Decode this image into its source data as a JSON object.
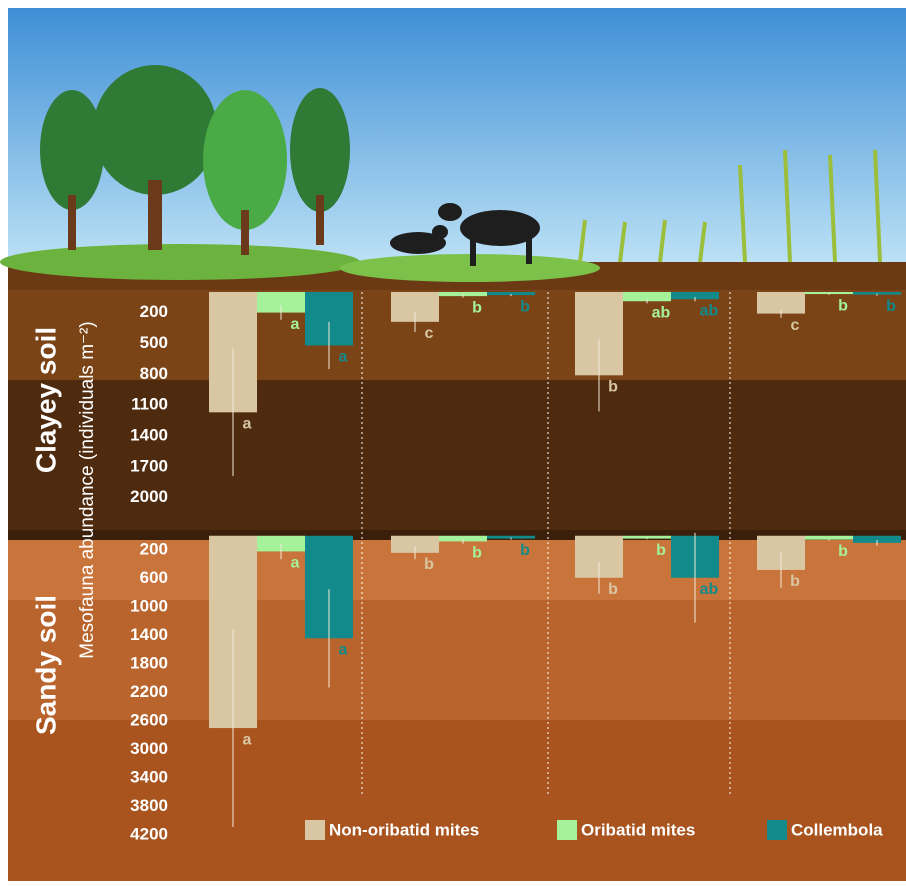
{
  "chart_data": [
    {
      "type": "bar",
      "panel_label": "Clayey soil",
      "ylabel": "Mesofauna abundance (individuals m⁻²)",
      "ylim": [
        0,
        2100
      ],
      "yticks": [
        200,
        500,
        800,
        1100,
        1400,
        1700,
        2000
      ],
      "inverted": true,
      "categories": [
        null,
        null,
        null,
        null
      ],
      "series": [
        {
          "color": "#d9c7a3",
          "values": [
            1170,
            290,
            810,
            210
          ],
          "errors": [
            620,
            100,
            350,
            40
          ],
          "value_labels": [
            "a",
            "c",
            "b",
            "c"
          ]
        },
        {
          "color": "#a6f29b",
          "values": [
            200,
            40,
            90,
            20
          ],
          "errors": [
            70,
            15,
            20,
            8
          ],
          "value_labels": [
            "a",
            "b",
            "ab",
            "b"
          ]
        },
        {
          "color": "#12898a",
          "values": [
            520,
            30,
            70,
            25
          ],
          "errors": [
            230,
            10,
            20,
            10
          ],
          "value_labels": [
            "a",
            "b",
            "ab",
            "b"
          ]
        }
      ]
    },
    {
      "type": "bar",
      "panel_label": "Sandy soil",
      "ylim": [
        0,
        4300
      ],
      "yticks": [
        200,
        600,
        1000,
        1400,
        1800,
        2200,
        2600,
        3000,
        3400,
        3800,
        4200
      ],
      "inverted": true,
      "categories": [
        null,
        null,
        null,
        null
      ],
      "series": [
        {
          "name": "Non-oribatid mites",
          "color": "#d9c7a3",
          "values": [
            2700,
            240,
            590,
            480
          ],
          "errors": [
            1390,
            90,
            220,
            250
          ],
          "value_labels": [
            "a",
            "b",
            "b",
            "b"
          ]
        },
        {
          "name": "Oribatid mites",
          "color": "#a6f29b",
          "values": [
            220,
            80,
            40,
            55
          ],
          "errors": [
            110,
            30,
            10,
            15
          ],
          "value_labels": [
            "a",
            "b",
            "b",
            "b"
          ]
        },
        {
          "name": "Collembola",
          "color": "#12898a",
          "values": [
            1440,
            40,
            590,
            100
          ],
          "errors": [
            690,
            15,
            630,
            40
          ],
          "value_labels": [
            "a",
            "b",
            "ab",
            null
          ]
        }
      ]
    }
  ]
}
